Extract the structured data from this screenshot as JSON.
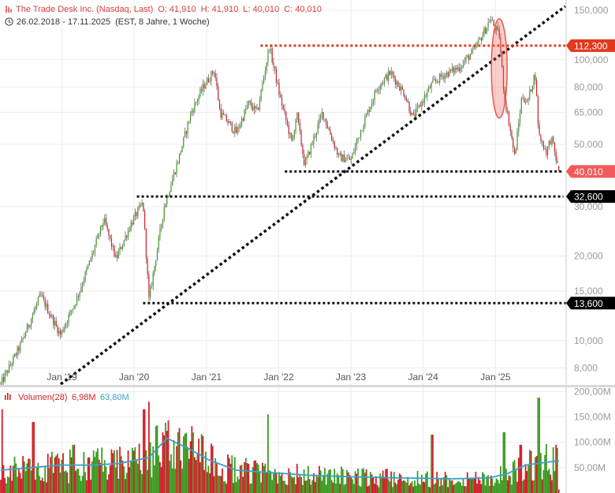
{
  "header": {
    "instrument": "The Trade Desk Inc. (Nasdaq, Last)",
    "open": "O: 41,910",
    "high": "H: 41,910",
    "low": "L: 40,010",
    "close": "C: 40,010",
    "period": "26.02.2018 - 17.11.2025",
    "interval": "(EST, 8 Jahre, 1 Woche)"
  },
  "volume_legend": {
    "label": "Volumen(28)",
    "last": "6,98M",
    "average": "63,80M"
  },
  "colors": {
    "up": "#3c9b22",
    "down": "#d0202a",
    "wick": "#555555",
    "volume_avg": "#3aa0c8",
    "resistance": "#e03a1e",
    "support": "#111111",
    "price_tag": "#f15a5a",
    "highlight": "#e8584e"
  },
  "chart_data": [
    {
      "type": "candlestick",
      "scale": "log",
      "ylim": [
        7000,
        155000
      ],
      "xlim": [
        "2018-02-26",
        "2025-12-20"
      ],
      "y_ticks": [
        {
          "value": 8000,
          "label": "8,000"
        },
        {
          "value": 10000,
          "label": "10,000"
        },
        {
          "value": 15000,
          "label": "15,000"
        },
        {
          "value": 20000,
          "label": "20,000"
        },
        {
          "value": 30000,
          "label": "30,000"
        },
        {
          "value": 50000,
          "label": "50,000"
        },
        {
          "value": 65000,
          "label": "65,000"
        },
        {
          "value": 80000,
          "label": "80,000"
        },
        {
          "value": 100000,
          "label": "100,000"
        },
        {
          "value": 150000,
          "label": "150,000"
        }
      ],
      "x_ticks": [
        {
          "date": "2019-01-01",
          "label": "Jan '19"
        },
        {
          "date": "2020-01-01",
          "label": "Jan '20"
        },
        {
          "date": "2021-01-01",
          "label": "Jan '21"
        },
        {
          "date": "2022-01-01",
          "label": "Jan '22"
        },
        {
          "date": "2023-01-01",
          "label": "Jan '23"
        },
        {
          "date": "2024-01-01",
          "label": "Jan '24"
        },
        {
          "date": "2025-01-01",
          "label": "Jan '25"
        }
      ],
      "price_path": [
        [
          "2018-02-26",
          7000
        ],
        [
          "2018-06-01",
          9500
        ],
        [
          "2018-09-15",
          14500
        ],
        [
          "2018-12-24",
          10500
        ],
        [
          "2019-03-15",
          14000
        ],
        [
          "2019-06-01",
          20000
        ],
        [
          "2019-08-01",
          27000
        ],
        [
          "2019-10-01",
          19500
        ],
        [
          "2019-12-15",
          26000
        ],
        [
          "2020-02-15",
          31000
        ],
        [
          "2020-03-16",
          14000
        ],
        [
          "2020-06-01",
          30000
        ],
        [
          "2020-08-15",
          45000
        ],
        [
          "2020-10-15",
          65000
        ],
        [
          "2020-12-15",
          80000
        ],
        [
          "2021-02-10",
          92000
        ],
        [
          "2021-03-10",
          65000
        ],
        [
          "2021-06-01",
          55000
        ],
        [
          "2021-08-01",
          70000
        ],
        [
          "2021-09-15",
          65000
        ],
        [
          "2021-11-15",
          112000
        ],
        [
          "2022-01-05",
          75000
        ],
        [
          "2022-03-10",
          50000
        ],
        [
          "2022-04-01",
          65000
        ],
        [
          "2022-05-12",
          42000
        ],
        [
          "2022-08-10",
          65000
        ],
        [
          "2022-11-01",
          45000
        ],
        [
          "2023-01-01",
          44000
        ],
        [
          "2023-02-15",
          55000
        ],
        [
          "2023-05-15",
          80000
        ],
        [
          "2023-07-20",
          90000
        ],
        [
          "2023-10-01",
          75000
        ],
        [
          "2023-11-10",
          62000
        ],
        [
          "2024-02-15",
          82000
        ],
        [
          "2024-04-10",
          88000
        ],
        [
          "2024-07-01",
          94000
        ],
        [
          "2024-09-15",
          108000
        ],
        [
          "2024-11-15",
          130000
        ],
        [
          "2024-12-05",
          140000
        ],
        [
          "2025-01-20",
          122000
        ],
        [
          "2025-02-14",
          74000
        ],
        [
          "2025-03-10",
          60000
        ],
        [
          "2025-04-08",
          45000
        ],
        [
          "2025-05-15",
          75000
        ],
        [
          "2025-06-10",
          70000
        ],
        [
          "2025-07-20",
          90000
        ],
        [
          "2025-08-08",
          54000
        ],
        [
          "2025-09-15",
          47000
        ],
        [
          "2025-10-10",
          53000
        ],
        [
          "2025-11-17",
          40010
        ]
      ],
      "annotations": {
        "resistance": {
          "value": 112300,
          "label": "112,300",
          "from": "2021-10-01",
          "to": "2025-12-20"
        },
        "supports": [
          {
            "value": 40010,
            "label": "40,010",
            "from": "2022-02-01",
            "to": "2025-12-10",
            "type": "last-price"
          },
          {
            "value": 32600,
            "label": "32,600",
            "from": "2020-01-15",
            "to": "2025-12-10"
          },
          {
            "value": 13600,
            "label": "13,600",
            "from": "2020-02-15",
            "to": "2026-01-15"
          }
        ],
        "trendline": {
          "from": [
            "2018-12-26",
            7000
          ],
          "to": [
            "2025-12-20",
            155000
          ]
        },
        "highlight": {
          "date": "2025-01-20",
          "low": 62000,
          "high": 140000
        }
      }
    },
    {
      "type": "bar",
      "series_name": "Volumen(28)",
      "ylim": [
        0,
        210
      ],
      "unit": "M",
      "y_ticks": [
        {
          "value": 50,
          "label": "50,00M"
        },
        {
          "value": 100,
          "label": "100,00M"
        },
        {
          "value": 150,
          "label": "150,00M"
        },
        {
          "value": 200,
          "label": "200,00M"
        }
      ],
      "volume_path": [
        [
          "2018-02-26",
          45
        ],
        [
          "2018-12-24",
          55
        ],
        [
          "2019-06-01",
          55
        ],
        [
          "2019-10-15",
          58
        ],
        [
          "2020-03-16",
          70
        ],
        [
          "2020-06-15",
          108
        ],
        [
          "2020-10-15",
          85
        ],
        [
          "2021-01-15",
          65
        ],
        [
          "2021-06-01",
          45
        ],
        [
          "2021-12-01",
          40
        ],
        [
          "2022-06-01",
          35
        ],
        [
          "2023-01-01",
          32
        ],
        [
          "2023-08-01",
          30
        ],
        [
          "2024-06-01",
          28
        ],
        [
          "2024-12-01",
          30
        ],
        [
          "2025-03-01",
          38
        ],
        [
          "2025-06-01",
          55
        ],
        [
          "2025-11-17",
          63.8
        ]
      ],
      "spikes": [
        [
          "2018-03-05",
          165
        ],
        [
          "2018-08-10",
          140
        ],
        [
          "2019-03-01",
          95
        ],
        [
          "2020-02-20",
          165
        ],
        [
          "2020-03-16",
          180
        ],
        [
          "2020-08-10",
          120
        ],
        [
          "2021-11-10",
          155
        ],
        [
          "2024-02-16",
          115
        ],
        [
          "2025-02-14",
          120
        ],
        [
          "2025-08-08",
          188
        ],
        [
          "2025-05-09",
          95
        ]
      ]
    }
  ]
}
